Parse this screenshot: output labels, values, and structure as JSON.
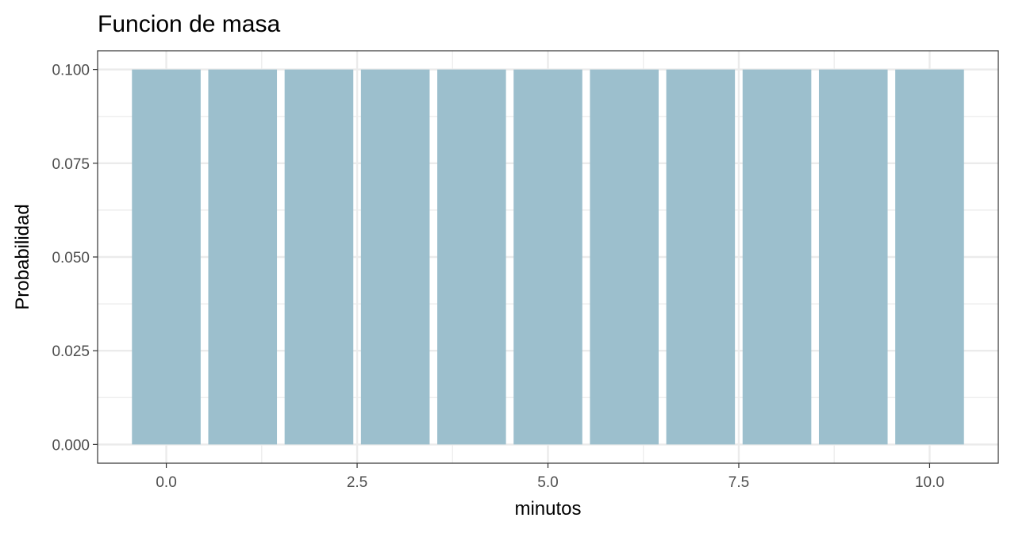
{
  "chart_data": {
    "type": "bar",
    "title": "Funcion de masa",
    "xlabel": "minutos",
    "ylabel": "Probabilidad",
    "x": [
      0,
      1,
      2,
      3,
      4,
      5,
      6,
      7,
      8,
      9,
      10
    ],
    "values": [
      0.1,
      0.1,
      0.1,
      0.1,
      0.1,
      0.1,
      0.1,
      0.1,
      0.1,
      0.1,
      0.1
    ],
    "xlim": [
      -0.9,
      10.9
    ],
    "ylim": [
      -0.005,
      0.105
    ],
    "x_ticks": [
      0,
      2.5,
      5,
      7.5,
      10
    ],
    "x_tick_labels": [
      "0.0",
      "2.5",
      "5.0",
      "7.5",
      "10.0"
    ],
    "y_ticks": [
      0,
      0.025,
      0.05,
      0.075,
      0.1
    ],
    "y_tick_labels": [
      "0.000",
      "0.025",
      "0.050",
      "0.075",
      "0.100"
    ],
    "grid": true,
    "bar_color": "#9cbfcd",
    "grid_color": "#ebebeb",
    "panel_border_color": "#333333"
  }
}
